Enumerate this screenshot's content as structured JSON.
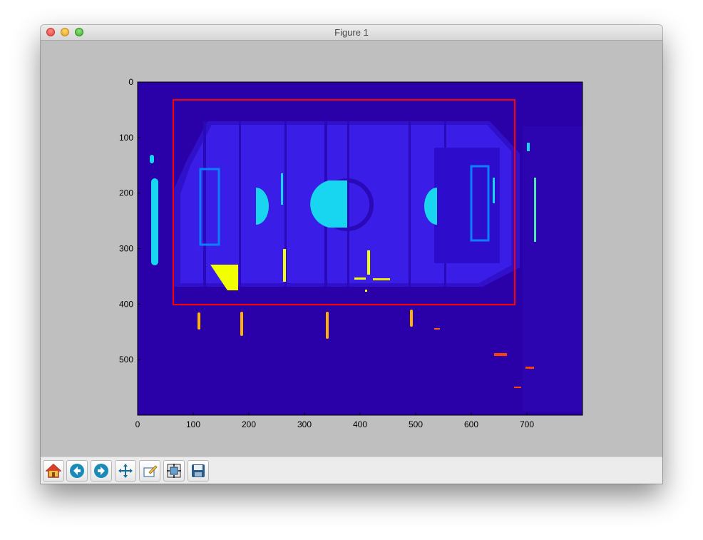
{
  "window": {
    "title": "Figure 1"
  },
  "toolbar": {
    "buttons": [
      {
        "name": "home",
        "icon": "home-icon"
      },
      {
        "name": "back",
        "icon": "back-arrow-icon"
      },
      {
        "name": "forward",
        "icon": "forward-arrow-icon"
      },
      {
        "name": "pan",
        "icon": "pan-move-icon"
      },
      {
        "name": "zoom",
        "icon": "zoom-rect-icon"
      },
      {
        "name": "subplots",
        "icon": "subplots-config-icon"
      },
      {
        "name": "save",
        "icon": "save-floppy-icon"
      }
    ]
  },
  "chart_data": {
    "type": "heatmap",
    "title": "",
    "xlabel": "",
    "ylabel": "",
    "xlim": [
      0,
      800
    ],
    "ylim": [
      600,
      0
    ],
    "x_ticks": [
      "0",
      "100",
      "200",
      "300",
      "400",
      "500",
      "600",
      "700"
    ],
    "y_ticks": [
      "0",
      "100",
      "200",
      "300",
      "400",
      "500"
    ],
    "colormap": "jet",
    "grid": false,
    "rectangle": {
      "x0": 65,
      "y0": 32,
      "x1": 682,
      "y1": 400,
      "color": "#ff0000"
    }
  },
  "colors": {
    "background_field": "#2a00a8",
    "table_region": "#3a1ee8",
    "cyan": "#19d6f0",
    "yellow": "#f2ff00",
    "orange": "#ffb000",
    "red": "#ff4000",
    "box": "#ff0000"
  }
}
